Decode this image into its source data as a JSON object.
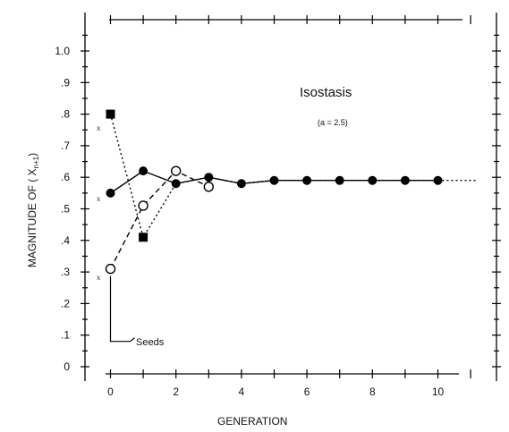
{
  "chart_data": {
    "type": "line",
    "title": "Isostasis",
    "subtitle": "(a = 2.5)",
    "xlabel": "GENERATION",
    "ylabel": "MAGNITUDE OF ( X",
    "ylabel_subscript": "n+1",
    "ylabel_close": ")",
    "xlim": [
      -0.7,
      11.3
    ],
    "ylim": [
      0,
      1.1
    ],
    "x_ticks": [
      0,
      2,
      4,
      6,
      8,
      10
    ],
    "x_tick_labels": [
      "0",
      "2",
      "4",
      "6",
      "8",
      "10"
    ],
    "y_ticks": [
      0,
      0.1,
      0.2,
      0.3,
      0.4,
      0.5,
      0.6,
      0.7,
      0.8,
      0.9,
      1.0
    ],
    "y_tick_labels": [
      "0",
      ".1",
      ".2",
      ".3",
      ".4",
      ".5",
      ".6",
      ".7",
      ".8",
      ".9",
      "1.0"
    ],
    "grid": false,
    "seeds_label": "Seeds",
    "seed_labels": [
      "x",
      "x",
      "x"
    ],
    "series": [
      {
        "marker": "filled-circle",
        "line": "solid",
        "x": [
          0,
          1,
          2,
          3,
          4,
          5,
          6,
          7,
          8,
          9,
          10
        ],
        "y": [
          0.55,
          0.62,
          0.58,
          0.6,
          0.58,
          0.59,
          0.59,
          0.59,
          0.59,
          0.59,
          0.59
        ]
      },
      {
        "marker": "filled-square",
        "line": "dotted",
        "x": [
          0,
          1,
          2,
          3,
          4,
          5,
          6,
          7,
          8,
          9,
          10
        ],
        "y": [
          0.8,
          0.41,
          0.58,
          0.6,
          0.58,
          0.59,
          0.59,
          0.59,
          0.59,
          0.59,
          0.59
        ]
      },
      {
        "marker": "open-circle",
        "line": "dashed",
        "x": [
          0,
          1,
          2,
          3
        ],
        "y": [
          0.31,
          0.51,
          0.62,
          0.57
        ]
      }
    ]
  }
}
